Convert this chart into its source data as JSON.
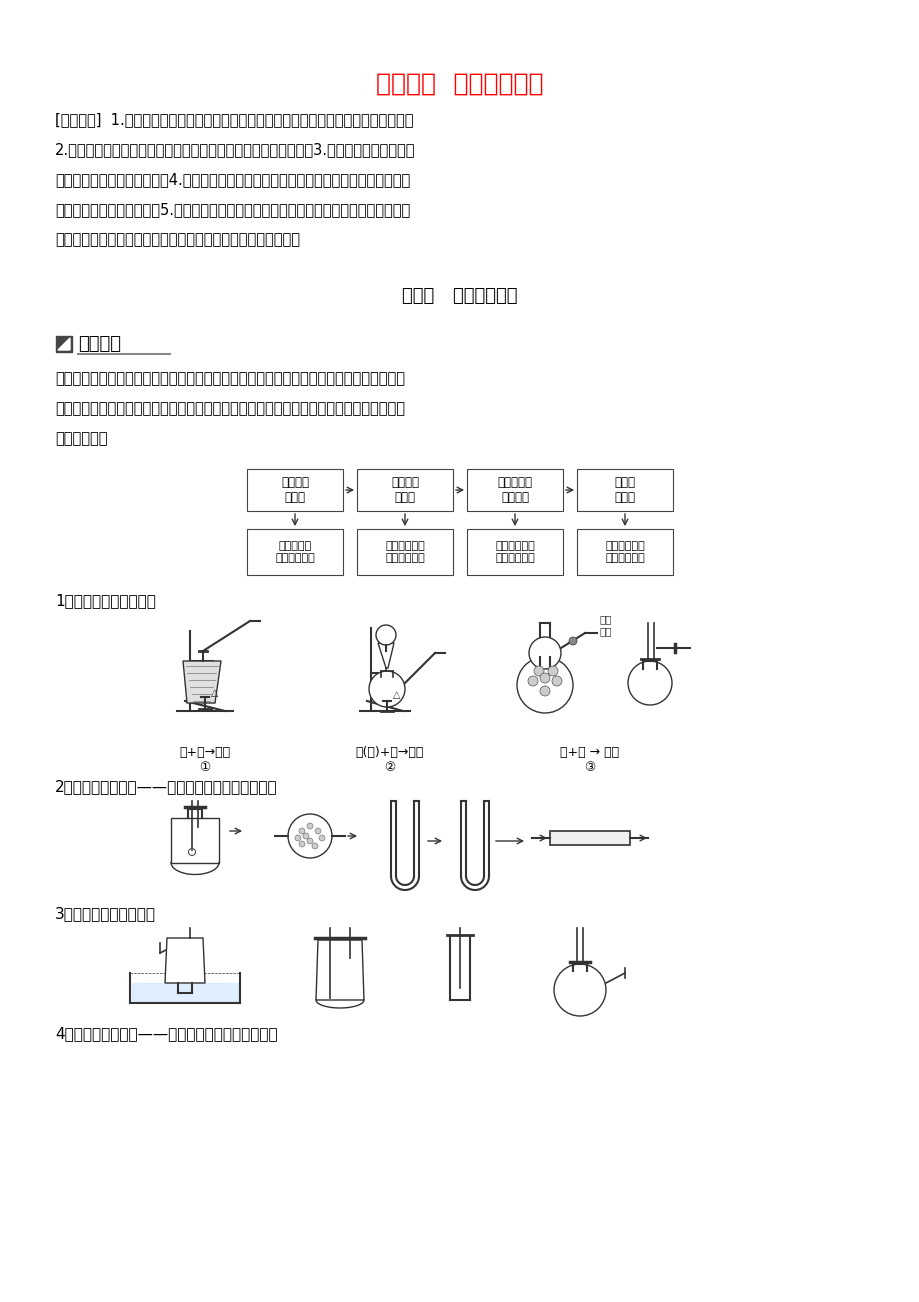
{
  "background_color": "#ffffff",
  "title": "专题十五  综合实验探究",
  "title_color": "#FF0000",
  "title_fontsize": 18,
  "section1_label": "考点一   评价型实验题",
  "knowledge_label": "知识精讲",
  "body_text": [
    "[考纲要求]  1.知道化学实验是化学科学探究的一种重要方法，了解实验探究的一般过程。",
    "2.了解常见气体和一些简单化合物的制备原理和实验室制备方法。3.了解控制实验条件的方",
    "法，能改进简单的实验方案。4.能识别简单的实验仪器装置图，能对实验数据进行初步分析",
    "或处理，并得出合理结论。5.能综合运用化学实验原理和方法，设计实验方案解决简单的化",
    "学问题，能对实验方案、实验过程和实验结果进行分析和评价。"
  ],
  "knowledge_text": [
    "评价型实验题包括的题型很多，其中比较典型的有物质性质探究型、组成成分探究型、物质",
    "制备和应用探究型等，该类试题一般以实验装置图的形式给出实验的流程，其实验流程与考",
    "查内容一般为"
  ],
  "flow_top": [
    "气体的发\n生装置",
    "气体的净\n化装置",
    "物质制备或\n性质实验",
    "尾气处\n理装置"
  ],
  "flow_bot": [
    "考查反应原\n理、防堵塞等",
    "考查除杂试剂\n选取以及顺序",
    "考查反应原理\n或实验现象等",
    "考查尾气处理\n的原理、方法"
  ],
  "sec_labels": [
    "1．常见的气体发生装置",
    "2．常见的净化装置——用于除去气体中的杂质气体",
    "3．常见的气体收集装置",
    "4．常见的量气装置——通过排液法测量气体的体积"
  ],
  "apparatus_labels_1": [
    "固+固→气体",
    "固(液)+液→气体",
    "固+液 → 气体"
  ],
  "apparatus_numbers_1": [
    "①",
    "②",
    "③"
  ],
  "label_duokong": "多孔\n隔板"
}
